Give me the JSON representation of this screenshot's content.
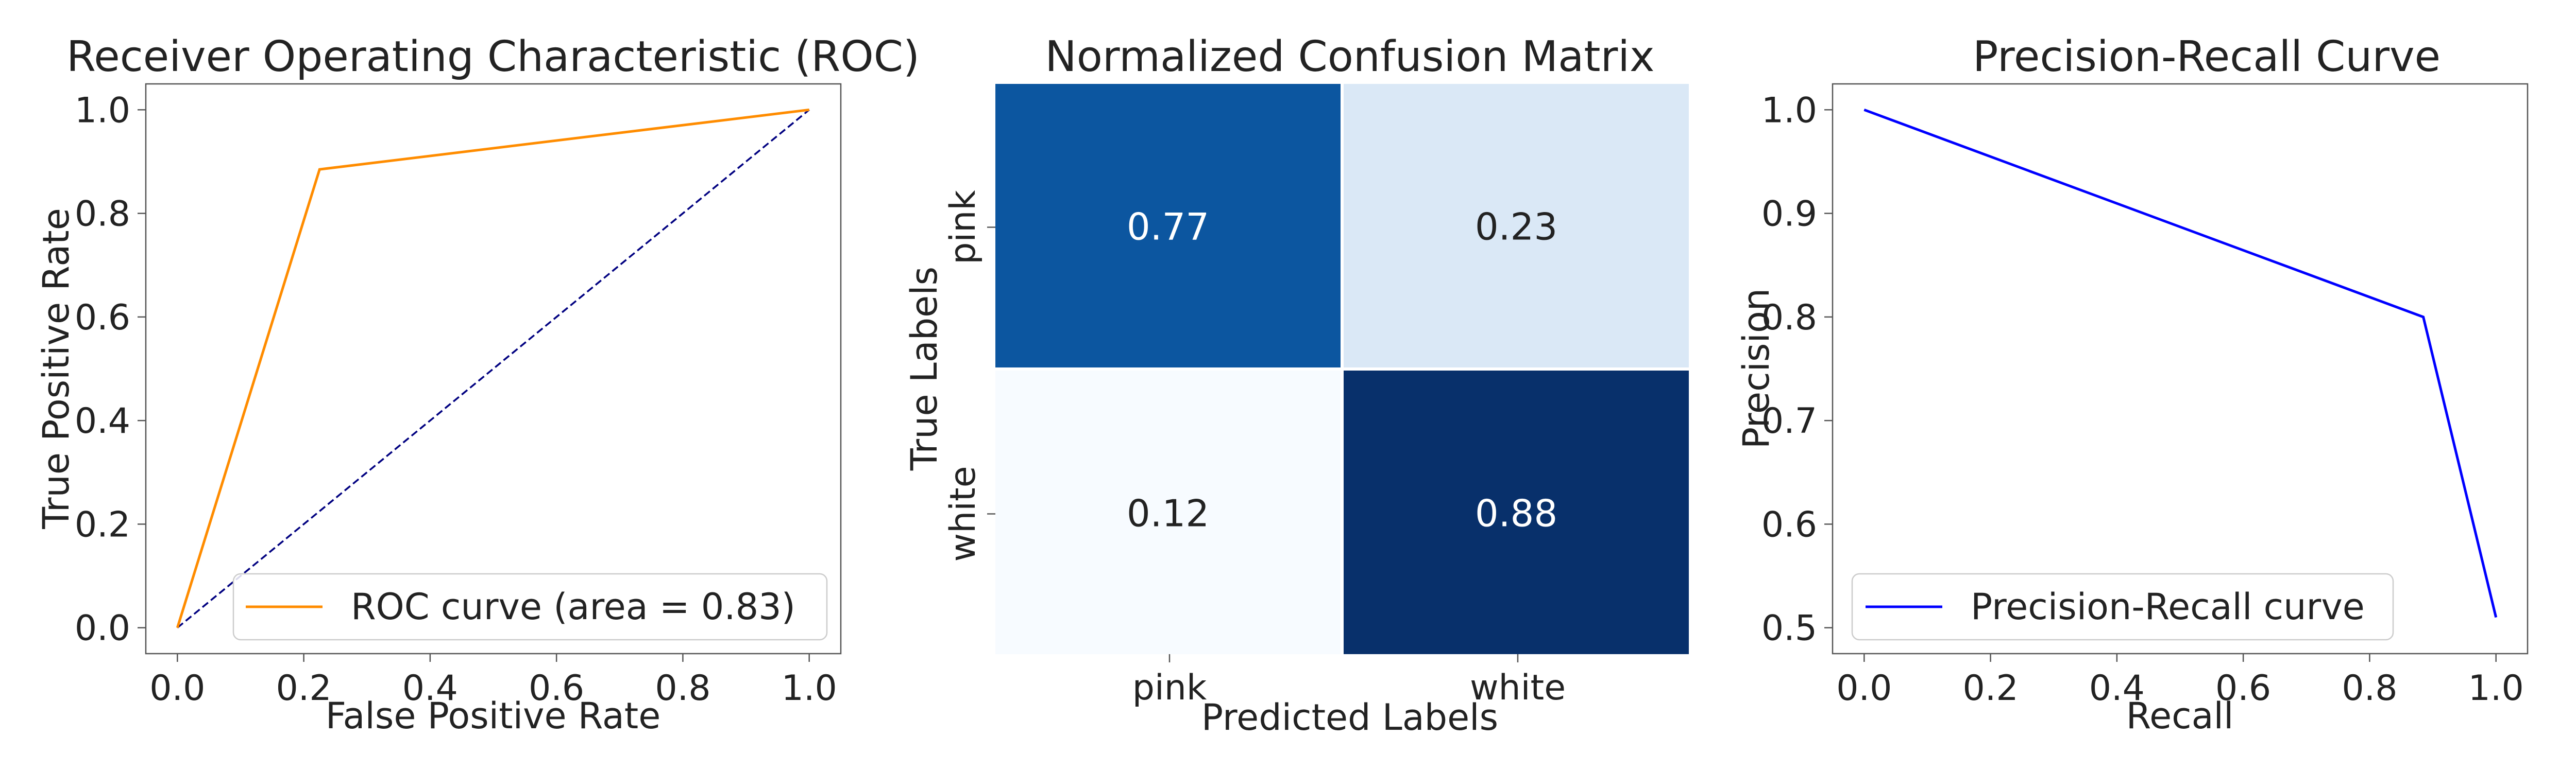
{
  "chart_data": [
    {
      "type": "line",
      "title": "Receiver Operating Characteristic (ROC)",
      "xlabel": "False Positive Rate",
      "ylabel": "True Positive Rate",
      "xlim": [
        -0.05,
        1.05
      ],
      "ylim": [
        -0.05,
        1.05
      ],
      "xticks": [
        0.0,
        0.2,
        0.4,
        0.6,
        0.8,
        1.0
      ],
      "yticks": [
        0.0,
        0.2,
        0.4,
        0.6,
        0.8,
        1.0
      ],
      "tick_labels": [
        "0.0",
        "0.2",
        "0.4",
        "0.6",
        "0.8",
        "1.0"
      ],
      "grid": false,
      "legend_position": "lower-right",
      "series": [
        {
          "name": "ROC curve (area = 0.83)",
          "color": "#ff8c00",
          "style": "solid",
          "x": [
            0.0,
            0.225,
            1.0
          ],
          "y": [
            0.0,
            0.885,
            1.0
          ]
        },
        {
          "name": "",
          "color": "#000080",
          "style": "dashed",
          "x": [
            0.0,
            1.0
          ],
          "y": [
            0.0,
            1.0
          ]
        }
      ]
    },
    {
      "type": "heatmap",
      "title": "Normalized Confusion Matrix",
      "xlabel": "Predicted Labels",
      "ylabel": "True Labels",
      "x_categories": [
        "pink",
        "white"
      ],
      "y_categories": [
        "pink",
        "white"
      ],
      "values": [
        [
          0.77,
          0.23
        ],
        [
          0.12,
          0.88
        ]
      ],
      "value_labels": [
        [
          "0.77",
          "0.23"
        ],
        [
          "0.12",
          "0.88"
        ]
      ],
      "colormap": "Blues"
    },
    {
      "type": "line",
      "title": "Precision-Recall Curve",
      "xlabel": "Recall",
      "ylabel": "Precision",
      "xlim": [
        -0.05,
        1.05
      ],
      "ylim": [
        0.475,
        1.025
      ],
      "xticks": [
        0.0,
        0.2,
        0.4,
        0.6,
        0.8,
        1.0
      ],
      "yticks": [
        0.5,
        0.6,
        0.7,
        0.8,
        0.9,
        1.0
      ],
      "xtick_labels": [
        "0.0",
        "0.2",
        "0.4",
        "0.6",
        "0.8",
        "1.0"
      ],
      "ytick_labels": [
        "0.5",
        "0.6",
        "0.7",
        "0.8",
        "0.9",
        "1.0"
      ],
      "grid": false,
      "legend_position": "lower-left",
      "series": [
        {
          "name": "Precision-Recall curve",
          "color": "#0000ff",
          "style": "solid",
          "x": [
            0.0,
            0.885,
            1.0
          ],
          "y": [
            1.0,
            0.8,
            0.51
          ]
        }
      ]
    }
  ]
}
